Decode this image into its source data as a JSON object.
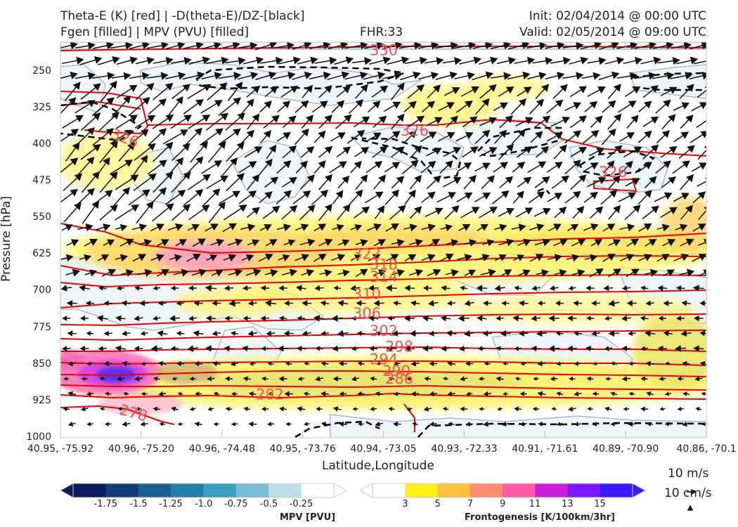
{
  "header": {
    "title_left_1": "Theta-E (K) [red] | -D(theta-E)/DZ-[black]",
    "title_left_2": "Fgen [filled] | MPV (PVU) [filled]",
    "fhr": "FHR:33",
    "init": "Init: 02/04/2014 @ 00:00 UTC",
    "valid": "Valid: 02/05/2014 @ 09:00 UTC"
  },
  "chart_data": {
    "type": "cross-section",
    "xlabel": "Latitude,Longitude",
    "ylabel": "Pressure [hPa]",
    "x_ticks": [
      "40.95, -75.92",
      "40.96, -75.20",
      "40.96, -74.48",
      "40.95, -73.76",
      "40.94, -73.05",
      "40.93, -72.33",
      "40.91, -71.61",
      "40.89, -70.90",
      "40.86, -70.1"
    ],
    "y_ticks": [
      250,
      325,
      400,
      475,
      550,
      625,
      700,
      775,
      850,
      925,
      1000
    ],
    "ylim": [
      190,
      1000
    ],
    "y_inverted": true,
    "theta_e_contours": [
      {
        "label": "330",
        "pressure": 205
      },
      {
        "label": "326",
        "pressure": 385
      },
      {
        "label": "326",
        "pressure": 370
      },
      {
        "label": "326",
        "pressure": 455
      },
      {
        "label": "322",
        "pressure": 622
      },
      {
        "label": "318",
        "pressure": 644
      },
      {
        "label": "314",
        "pressure": 669
      },
      {
        "label": "310",
        "pressure": 704
      },
      {
        "label": "306",
        "pressure": 744
      },
      {
        "label": "302",
        "pressure": 780
      },
      {
        "label": "298",
        "pressure": 812
      },
      {
        "label": "294",
        "pressure": 838
      },
      {
        "label": "290",
        "pressure": 862
      },
      {
        "label": "286",
        "pressure": 878
      },
      {
        "label": "282",
        "pressure": 910
      },
      {
        "label": "278",
        "pressure": 948
      }
    ],
    "mpv_colorbar": {
      "title": "MPV [PVU]",
      "labels": [
        "-1.75",
        "-1.5",
        "-1.25",
        "-1.0",
        "-0.75",
        "-0.5",
        "-0.25"
      ],
      "colors": [
        "#0d1b5e",
        "#123c78",
        "#1a5f8f",
        "#2280a8",
        "#3a9fc0",
        "#79bdd4",
        "#bfdfe8",
        "#ffffff"
      ]
    },
    "fgen_colorbar": {
      "title": "Frontogenesis [K/100km/3hr]",
      "labels": [
        "3",
        "5",
        "7",
        "9",
        "11",
        "13",
        "15"
      ],
      "colors": [
        "#ffffff",
        "#fff01a",
        "#ffc23a",
        "#ff8c6e",
        "#ff58a6",
        "#c820d8",
        "#7a18ff",
        "#3a1aff"
      ]
    },
    "wind_key": {
      "label1": "10 m/s",
      "label2": "10 cm/s"
    }
  }
}
